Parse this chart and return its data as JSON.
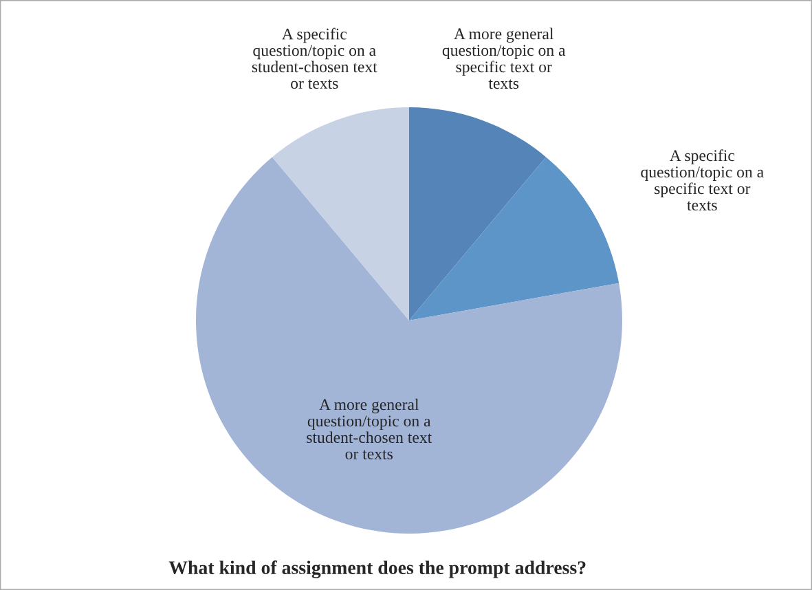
{
  "chart_data": {
    "type": "pie",
    "title": "What kind of assignment does the prompt address?",
    "categories": [
      "A more general question/topic on a specific text or texts",
      "A specific question/topic on a specific text or texts",
      "A more general question/topic on a student-chosen text or texts",
      "A specific question/topic on a student-chosen text or texts"
    ],
    "values": [
      11.1,
      11.1,
      66.7,
      11.1
    ],
    "colors": [
      "#5585b8",
      "#5e95c9",
      "#a3b5d7",
      "#c7d2e5"
    ],
    "legend": false
  }
}
